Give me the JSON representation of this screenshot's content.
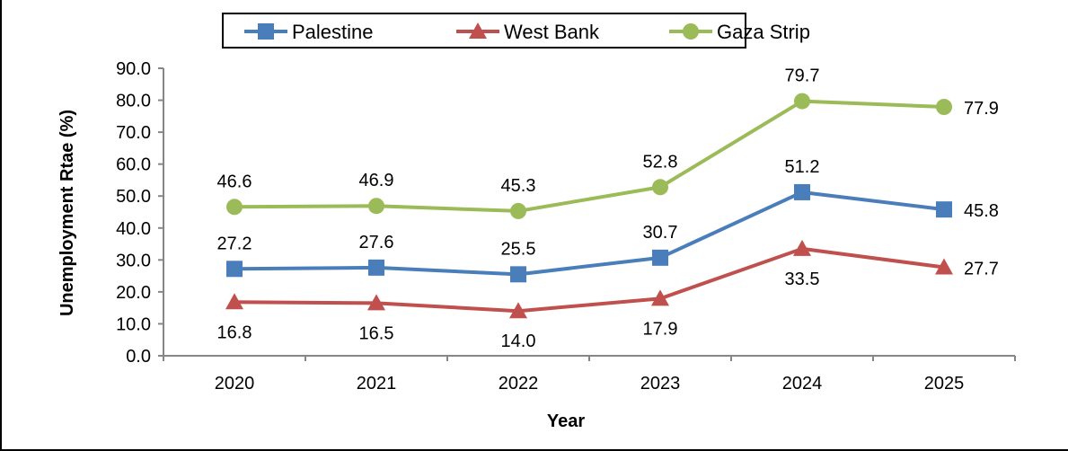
{
  "chart_data": {
    "type": "line",
    "title": "",
    "xlabel": "Year",
    "ylabel": "Unemployment Rtae (%)",
    "categories": [
      "2020",
      "2021",
      "2022",
      "2023",
      "2024",
      "2025"
    ],
    "ylim": [
      0,
      90
    ],
    "yticks": [
      "0.0",
      "10.0",
      "20.0",
      "30.0",
      "40.0",
      "50.0",
      "60.0",
      "70.0",
      "80.0",
      "90.0"
    ],
    "grid": false,
    "legend_position": "top-center",
    "series": [
      {
        "name": "Palestine",
        "color": "#4a7ebb",
        "marker": "square",
        "values": [
          27.2,
          27.6,
          25.5,
          30.7,
          51.2,
          45.8
        ],
        "labels": [
          "27.2",
          "27.6",
          "25.5",
          "30.7",
          "51.2",
          "45.8"
        ],
        "label_positions": [
          "above",
          "above",
          "above",
          "above",
          "above",
          "right"
        ]
      },
      {
        "name": "West Bank",
        "color": "#c0504d",
        "marker": "triangle",
        "values": [
          16.8,
          16.5,
          14.0,
          17.9,
          33.5,
          27.7
        ],
        "labels": [
          "16.8",
          "16.5",
          "14.0",
          "17.9",
          "33.5",
          "27.7"
        ],
        "label_positions": [
          "below",
          "below",
          "below",
          "below",
          "below",
          "right"
        ]
      },
      {
        "name": "Gaza Strip",
        "color": "#9bbb59",
        "marker": "circle",
        "values": [
          46.6,
          46.9,
          45.3,
          52.8,
          79.7,
          77.9
        ],
        "labels": [
          "46.6",
          "46.9",
          "45.3",
          "52.8",
          "79.7",
          "77.9"
        ],
        "label_positions": [
          "above",
          "above",
          "above",
          "above",
          "above",
          "right"
        ]
      }
    ]
  }
}
